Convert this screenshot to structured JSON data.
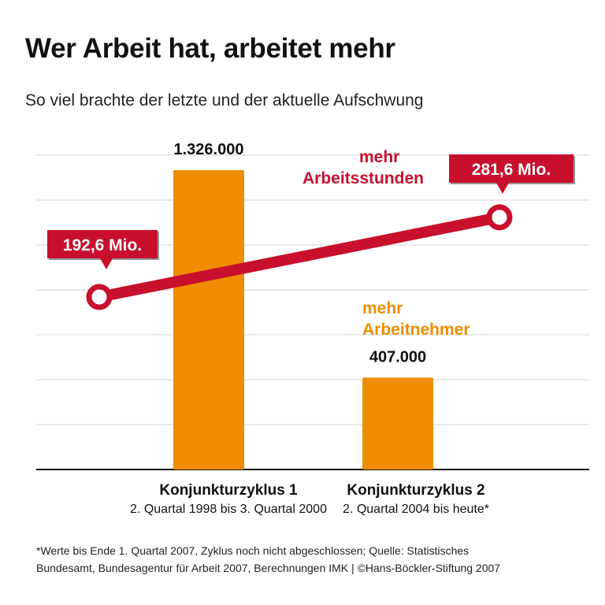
{
  "title": "Wer Arbeit hat, arbeitet mehr",
  "subtitle": "So viel brachte der letzte und der aktuelle Aufschwung",
  "chart_data": {
    "type": "bar+line",
    "categories": [
      "Konjunkturzyklus 1",
      "Konjunkturzyklus 2"
    ],
    "category_subtitles": [
      "2. Quartal 1998 bis 3. Quartal 2000",
      "2. Quartal 2004 bis heute*"
    ],
    "series": [
      {
        "name": "mehr Arbeitnehmer",
        "type": "bar",
        "values": [
          1326000,
          407000
        ],
        "labels": [
          "1.326.000",
          "407.000"
        ],
        "color": "#f08c00"
      },
      {
        "name": "mehr Arbeitsstunden",
        "type": "line",
        "values": [
          192.6,
          281.6
        ],
        "labels": [
          "192,6 Mio.",
          "281,6 Mio."
        ],
        "color": "#c8102e"
      }
    ],
    "series_label_lines": {
      "bar": [
        "mehr",
        "Arbeitnehmer"
      ],
      "line": [
        "mehr",
        "Arbeitsstunden"
      ]
    },
    "grid": true
  },
  "footnote": [
    "*Werte bis Ende 1. Quartal 2007, Zyklus noch nicht abgeschlossen; Quelle: Statistisches",
    "Bundesamt, Bundesagentur für Arbeit 2007, Berechnungen IMK | ©Hans-Böckler-Stiftung 2007"
  ]
}
